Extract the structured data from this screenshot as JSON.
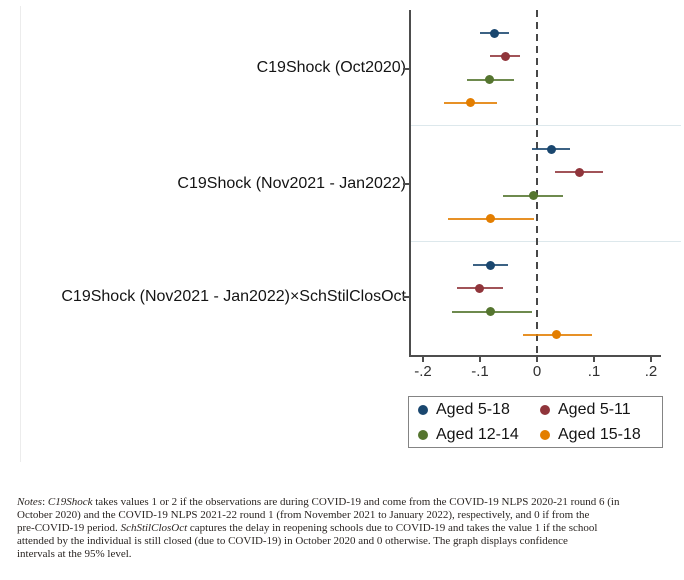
{
  "figure": {
    "notes": {
      "lines": [
        [
          {
            "t": "Notes",
            "i": true
          },
          {
            "t": ": "
          },
          {
            "t": "C19Shock",
            "i": true
          },
          {
            "t": " takes values 1 or 2 if the observations are during COVID-19 and come from the COVID-19 NLPS 2020-21 round 6 (in"
          }
        ],
        [
          {
            "t": "October 2020) and the COVID-19 NLPS 2021-22 round 1 (from November 2021 to January 2022), respectively, and 0 if from the"
          }
        ],
        [
          {
            "t": "pre-COVID-19 period. "
          },
          {
            "t": "SchStilClosOct",
            "i": true
          },
          {
            "t": " captures the delay in reopening schools due to COVID-19 and takes the value 1 if the school"
          }
        ],
        [
          {
            "t": "attended by the individual is still closed (due to COVID-19) in October 2020 and 0 otherwise. The graph displays confidence"
          }
        ],
        [
          {
            "t": "intervals at the 95% level."
          }
        ]
      ]
    }
  },
  "chart_data": {
    "type": "scatter",
    "subtype": "coefficient-plot-with-95ci",
    "title": "",
    "xlabel": "",
    "ylabel": "",
    "groups": [
      "C19Shock (Oct2020)",
      "C19Shock (Nov2021 - Jan2022)",
      "C19Shock (Nov2021 - Jan2022)×SchStilClosOct"
    ],
    "series": [
      {
        "name": "Aged 5-18",
        "color": "#1a476f",
        "est": [
          -0.075,
          0.026,
          -0.081
        ],
        "lo": [
          -0.1,
          -0.009,
          -0.112
        ],
        "hi": [
          -0.05,
          0.058,
          -0.05
        ]
      },
      {
        "name": "Aged 5-11",
        "color": "#90353b",
        "est": [
          -0.055,
          0.074,
          -0.101
        ],
        "lo": [
          -0.082,
          0.032,
          -0.141
        ],
        "hi": [
          -0.03,
          0.116,
          -0.06
        ]
      },
      {
        "name": "Aged 12-14",
        "color": "#55752f",
        "est": [
          -0.084,
          -0.006,
          -0.081
        ],
        "lo": [
          -0.123,
          -0.059,
          -0.15
        ],
        "hi": [
          -0.04,
          0.046,
          -0.009
        ]
      },
      {
        "name": "Aged 15-18",
        "color": "#e37e00",
        "est": [
          -0.117,
          -0.081,
          0.035
        ],
        "lo": [
          -0.164,
          -0.156,
          -0.024
        ],
        "hi": [
          -0.071,
          -0.006,
          0.096
        ]
      }
    ],
    "x_ticks": {
      "values": [
        -0.2,
        -0.1,
        0,
        0.1,
        0.2
      ],
      "labels": [
        "-.2",
        "-.1",
        "0",
        ".1",
        ".2"
      ]
    },
    "xlim": [
      -0.223,
      0.218
    ],
    "zero_line_at": 0,
    "grid": "light-horizontal-group-separators",
    "legend_position": "below-axis-right",
    "ci_level": "95%"
  }
}
